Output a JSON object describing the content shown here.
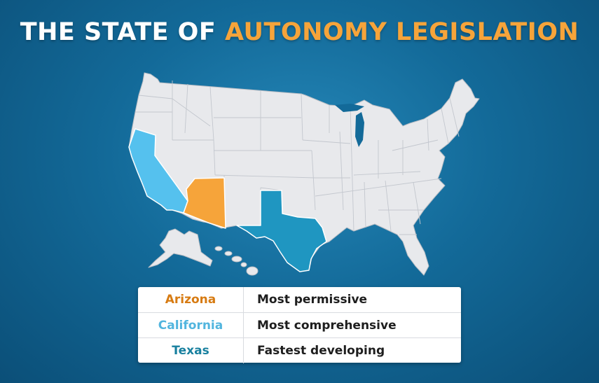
{
  "title": {
    "part1": "THE STATE OF ",
    "part2": "AUTONOMY LEGISLATION"
  },
  "colors": {
    "arizona": "#f6a43a",
    "california": "#55c1ee",
    "texas": "#1f96c1",
    "title_accent": "#f6a43a",
    "other_states": "#e8e9ec"
  },
  "legend": [
    {
      "state": "Arizona",
      "description": "Most permissive",
      "color": "#d77b12"
    },
    {
      "state": "California",
      "description": "Most comprehensive",
      "color": "#52b5de"
    },
    {
      "state": "Texas",
      "description": "Fastest developing",
      "color": "#18809f"
    }
  ]
}
